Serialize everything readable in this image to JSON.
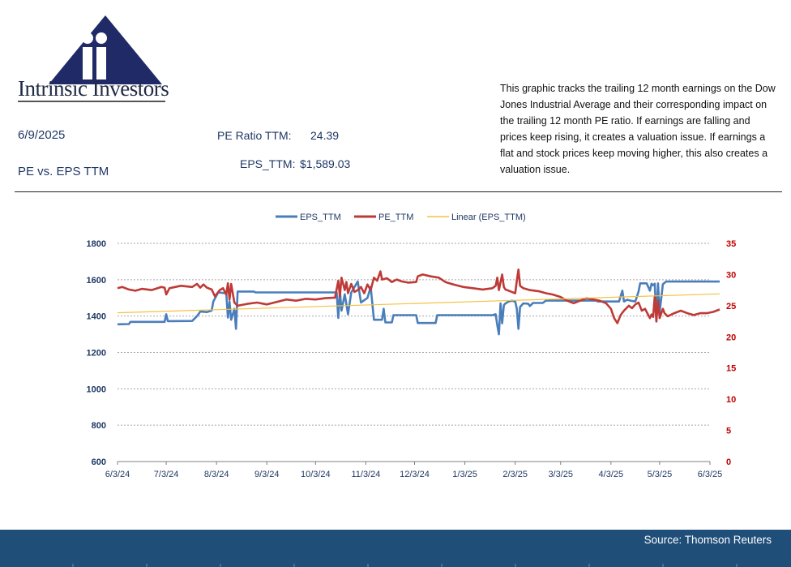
{
  "header": {
    "brand": "Intrinsic Investors",
    "date": "6/9/2025",
    "subtitle": "PE vs. EPS TTM",
    "pe_label": "PE Ratio TTM:",
    "pe_value": "24.39",
    "eps_label": "EPS_TTM:",
    "eps_value": "$1,589.03",
    "description": "This graphic tracks the trailing 12 month earnings on the Dow Jones Industrial Average and their corresponding impact on the trailing 12 month PE ratio.  If earnings are falling and prices keep rising, it creates a valuation issue.  If earnings a flat and stock prices keep moving higher, this also creates a valuation issue."
  },
  "footer": {
    "source": "Source: Thomson Reuters"
  },
  "colors": {
    "eps": "#4a7ebb",
    "pe": "#be3a36",
    "linear": "#f5c242",
    "axis_left": "#1f3864",
    "axis_right": "#c00000",
    "footer": "#1f4e79"
  },
  "chart_data": {
    "type": "line",
    "legend_position": "top-center",
    "grid": true,
    "x_tick_labels": [
      "6/3/24",
      "7/3/24",
      "8/3/24",
      "9/3/24",
      "10/3/24",
      "11/3/24",
      "12/3/24",
      "1/3/25",
      "2/3/25",
      "3/3/25",
      "4/3/25",
      "5/3/25",
      "6/3/25"
    ],
    "y_left": {
      "min": 600,
      "max": 1800,
      "ticks": [
        600,
        800,
        1000,
        1200,
        1400,
        1600,
        1800
      ]
    },
    "y_right": {
      "min": 0,
      "max": 35,
      "ticks": [
        0,
        5,
        10,
        15,
        20,
        25,
        30,
        35
      ]
    },
    "series": [
      {
        "name": "EPS_TTM",
        "axis": "left",
        "points": [
          [
            "2024-06-03",
            1355
          ],
          [
            "2024-06-10",
            1356
          ],
          [
            "2024-06-11",
            1368
          ],
          [
            "2024-07-02",
            1368
          ],
          [
            "2024-07-03",
            1410
          ],
          [
            "2024-07-04",
            1372
          ],
          [
            "2024-07-19",
            1373
          ],
          [
            "2024-07-22",
            1400
          ],
          [
            "2024-07-24",
            1425
          ],
          [
            "2024-07-28",
            1422
          ],
          [
            "2024-07-31",
            1430
          ],
          [
            "2024-08-01",
            1480
          ],
          [
            "2024-08-04",
            1530
          ],
          [
            "2024-08-09",
            1525
          ],
          [
            "2024-08-10",
            1392
          ],
          [
            "2024-08-11",
            1480
          ],
          [
            "2024-08-12",
            1380
          ],
          [
            "2024-08-14",
            1440
          ],
          [
            "2024-08-15",
            1330
          ],
          [
            "2024-08-16",
            1535
          ],
          [
            "2024-08-26",
            1535
          ],
          [
            "2024-08-27",
            1530
          ],
          [
            "2024-10-16",
            1530
          ],
          [
            "2024-10-17",
            1390
          ],
          [
            "2024-10-18",
            1540
          ],
          [
            "2024-10-19",
            1430
          ],
          [
            "2024-10-21",
            1520
          ],
          [
            "2024-10-23",
            1410
          ],
          [
            "2024-10-25",
            1530
          ],
          [
            "2024-10-26",
            1545
          ],
          [
            "2024-10-29",
            1590
          ],
          [
            "2024-10-31",
            1475
          ],
          [
            "2024-11-04",
            1500
          ],
          [
            "2024-11-06",
            1560
          ],
          [
            "2024-11-08",
            1380
          ],
          [
            "2024-11-13",
            1380
          ],
          [
            "2024-11-14",
            1440
          ],
          [
            "2024-11-15",
            1365
          ],
          [
            "2024-11-19",
            1365
          ],
          [
            "2024-11-20",
            1405
          ],
          [
            "2024-12-04",
            1405
          ],
          [
            "2024-12-05",
            1362
          ],
          [
            "2024-12-16",
            1362
          ],
          [
            "2024-12-17",
            1405
          ],
          [
            "2025-01-20",
            1405
          ],
          [
            "2025-01-22",
            1410
          ],
          [
            "2025-01-23",
            1350
          ],
          [
            "2025-01-24",
            1300
          ],
          [
            "2025-01-25",
            1470
          ],
          [
            "2025-01-26",
            1360
          ],
          [
            "2025-01-27",
            1460
          ],
          [
            "2025-01-28",
            1470
          ],
          [
            "2025-01-30",
            1480
          ],
          [
            "2025-02-01",
            1485
          ],
          [
            "2025-02-03",
            1480
          ],
          [
            "2025-02-04",
            1440
          ],
          [
            "2025-02-05",
            1330
          ],
          [
            "2025-02-06",
            1450
          ],
          [
            "2025-02-08",
            1470
          ],
          [
            "2025-02-11",
            1468
          ],
          [
            "2025-02-12",
            1455
          ],
          [
            "2025-02-14",
            1472
          ],
          [
            "2025-02-20",
            1472
          ],
          [
            "2025-02-22",
            1485
          ],
          [
            "2025-03-25",
            1485
          ],
          [
            "2025-03-26",
            1480
          ],
          [
            "2025-04-08",
            1480
          ],
          [
            "2025-04-10",
            1540
          ],
          [
            "2025-04-11",
            1480
          ],
          [
            "2025-04-13",
            1490
          ],
          [
            "2025-04-15",
            1485
          ],
          [
            "2025-04-18",
            1480
          ],
          [
            "2025-04-20",
            1535
          ],
          [
            "2025-04-21",
            1580
          ],
          [
            "2025-04-25",
            1580
          ],
          [
            "2025-04-27",
            1540
          ],
          [
            "2025-04-28",
            1578
          ],
          [
            "2025-04-29",
            1570
          ],
          [
            "2025-04-30",
            1578
          ],
          [
            "2025-05-01",
            1370
          ],
          [
            "2025-05-02",
            1580
          ],
          [
            "2025-05-03",
            1420
          ],
          [
            "2025-05-05",
            1575
          ],
          [
            "2025-05-07",
            1590
          ],
          [
            "2025-06-09",
            1590
          ]
        ]
      },
      {
        "name": "PE_TTM",
        "axis": "right",
        "points": [
          [
            "2024-06-03",
            27.8
          ],
          [
            "2024-06-06",
            28.0
          ],
          [
            "2024-06-10",
            27.6
          ],
          [
            "2024-06-14",
            27.4
          ],
          [
            "2024-06-18",
            27.7
          ],
          [
            "2024-06-24",
            27.5
          ],
          [
            "2024-06-30",
            28.0
          ],
          [
            "2024-07-02",
            27.9
          ],
          [
            "2024-07-03",
            26.8
          ],
          [
            "2024-07-05",
            27.8
          ],
          [
            "2024-07-12",
            28.2
          ],
          [
            "2024-07-19",
            28.0
          ],
          [
            "2024-07-22",
            28.5
          ],
          [
            "2024-07-24",
            27.9
          ],
          [
            "2024-07-26",
            28.4
          ],
          [
            "2024-07-28",
            27.9
          ],
          [
            "2024-07-31",
            27.6
          ],
          [
            "2024-08-02",
            26.5
          ],
          [
            "2024-08-05",
            27.5
          ],
          [
            "2024-08-07",
            27.8
          ],
          [
            "2024-08-09",
            26.8
          ],
          [
            "2024-08-10",
            28.6
          ],
          [
            "2024-08-11",
            26.0
          ],
          [
            "2024-08-12",
            28.5
          ],
          [
            "2024-08-14",
            25.5
          ],
          [
            "2024-08-16",
            25.0
          ],
          [
            "2024-08-22",
            25.3
          ],
          [
            "2024-08-28",
            25.5
          ],
          [
            "2024-09-03",
            25.2
          ],
          [
            "2024-09-09",
            25.6
          ],
          [
            "2024-09-15",
            26.0
          ],
          [
            "2024-09-21",
            25.8
          ],
          [
            "2024-09-27",
            26.1
          ],
          [
            "2024-10-03",
            26.0
          ],
          [
            "2024-10-09",
            26.2
          ],
          [
            "2024-10-15",
            26.3
          ],
          [
            "2024-10-17",
            29.0
          ],
          [
            "2024-10-18",
            26.5
          ],
          [
            "2024-10-19",
            29.5
          ],
          [
            "2024-10-21",
            27.5
          ],
          [
            "2024-10-22",
            28.8
          ],
          [
            "2024-10-23",
            27.0
          ],
          [
            "2024-10-25",
            28.5
          ],
          [
            "2024-10-27",
            27.2
          ],
          [
            "2024-10-29",
            27.5
          ],
          [
            "2024-10-31",
            28.0
          ],
          [
            "2024-11-02",
            27.0
          ],
          [
            "2024-11-04",
            28.4
          ],
          [
            "2024-11-06",
            27.5
          ],
          [
            "2024-11-08",
            29.5
          ],
          [
            "2024-11-10",
            29.0
          ],
          [
            "2024-11-12",
            30.5
          ],
          [
            "2024-11-13",
            29.2
          ],
          [
            "2024-11-16",
            29.4
          ],
          [
            "2024-11-19",
            28.8
          ],
          [
            "2024-11-22",
            29.2
          ],
          [
            "2024-11-25",
            28.9
          ],
          [
            "2024-11-29",
            28.7
          ],
          [
            "2024-12-04",
            28.8
          ],
          [
            "2024-12-05",
            29.7
          ],
          [
            "2024-12-08",
            30.0
          ],
          [
            "2024-12-13",
            29.7
          ],
          [
            "2024-12-18",
            29.5
          ],
          [
            "2024-12-22",
            28.8
          ],
          [
            "2024-12-27",
            28.4
          ],
          [
            "2025-01-02",
            28.0
          ],
          [
            "2025-01-08",
            27.8
          ],
          [
            "2025-01-14",
            27.6
          ],
          [
            "2025-01-20",
            27.8
          ],
          [
            "2025-01-22",
            28.2
          ],
          [
            "2025-01-23",
            29.5
          ],
          [
            "2025-01-24",
            27.5
          ],
          [
            "2025-01-26",
            30.0
          ],
          [
            "2025-01-27",
            28.0
          ],
          [
            "2025-01-28",
            27.6
          ],
          [
            "2025-01-31",
            27.3
          ],
          [
            "2025-02-03",
            27.0
          ],
          [
            "2025-02-04",
            29.0
          ],
          [
            "2025-02-05",
            30.8
          ],
          [
            "2025-02-06",
            28.2
          ],
          [
            "2025-02-08",
            27.8
          ],
          [
            "2025-02-12",
            27.5
          ],
          [
            "2025-02-18",
            27.3
          ],
          [
            "2025-02-22",
            27.0
          ],
          [
            "2025-02-26",
            26.8
          ],
          [
            "2025-03-03",
            26.4
          ],
          [
            "2025-03-07",
            25.8
          ],
          [
            "2025-03-11",
            25.4
          ],
          [
            "2025-03-15",
            25.8
          ],
          [
            "2025-03-19",
            26.2
          ],
          [
            "2025-03-23",
            26.0
          ],
          [
            "2025-03-27",
            25.8
          ],
          [
            "2025-03-31",
            25.4
          ],
          [
            "2025-04-03",
            24.5
          ],
          [
            "2025-04-05",
            23.0
          ],
          [
            "2025-04-07",
            22.2
          ],
          [
            "2025-04-09",
            23.5
          ],
          [
            "2025-04-11",
            24.2
          ],
          [
            "2025-04-14",
            25.0
          ],
          [
            "2025-04-16",
            24.6
          ],
          [
            "2025-04-18",
            25.2
          ],
          [
            "2025-04-20",
            25.5
          ],
          [
            "2025-04-22",
            24.2
          ],
          [
            "2025-04-24",
            24.5
          ],
          [
            "2025-04-26",
            23.5
          ],
          [
            "2025-04-27",
            23.0
          ],
          [
            "2025-04-28",
            23.6
          ],
          [
            "2025-04-29",
            23.2
          ],
          [
            "2025-04-30",
            26.5
          ],
          [
            "2025-05-01",
            22.5
          ],
          [
            "2025-05-02",
            25.8
          ],
          [
            "2025-05-03",
            23.0
          ],
          [
            "2025-05-05",
            24.5
          ],
          [
            "2025-05-06",
            23.8
          ],
          [
            "2025-05-08",
            23.3
          ],
          [
            "2025-05-12",
            23.8
          ],
          [
            "2025-05-16",
            24.2
          ],
          [
            "2025-05-20",
            23.8
          ],
          [
            "2025-05-24",
            23.5
          ],
          [
            "2025-05-28",
            23.8
          ],
          [
            "2025-06-01",
            23.8
          ],
          [
            "2025-06-05",
            24.0
          ],
          [
            "2025-06-09",
            24.4
          ]
        ]
      },
      {
        "name": "Linear (EPS_TTM)",
        "axis": "left",
        "trendline": true,
        "points": [
          [
            "2024-06-03",
            1418
          ],
          [
            "2025-06-09",
            1522
          ]
        ]
      }
    ]
  }
}
